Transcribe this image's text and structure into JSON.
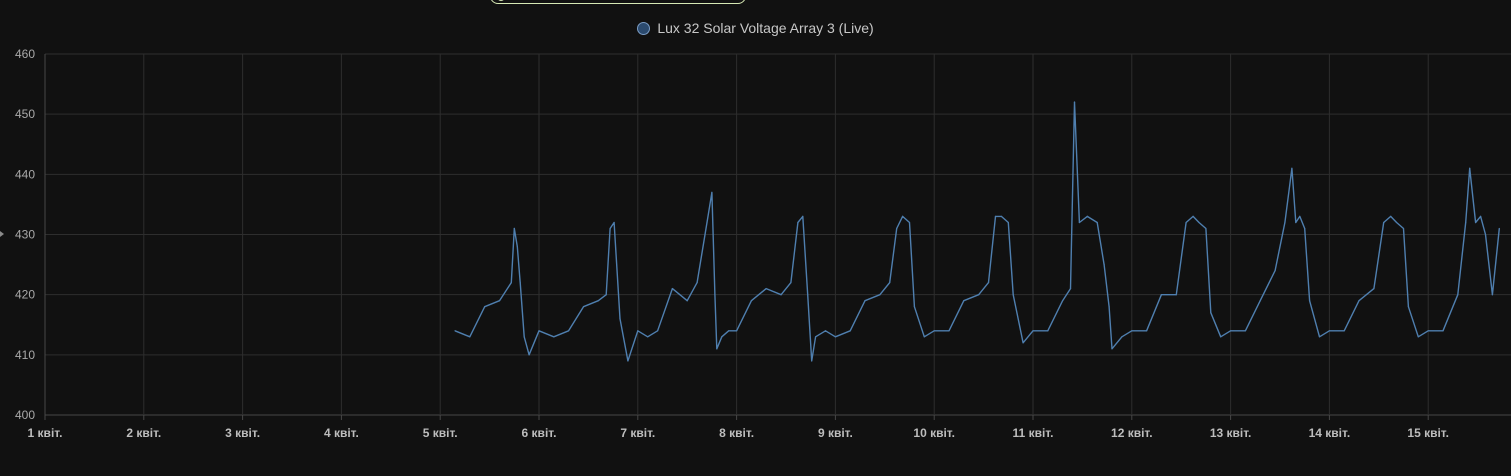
{
  "legend": {
    "label": "Lux 32 Solar Voltage Array 3 (Live)"
  },
  "colors": {
    "series": "#4f7faf",
    "background": "#111111",
    "grid": "#2e2e2e"
  },
  "chart_data": {
    "type": "line",
    "title": "",
    "xlabel": "",
    "ylabel": "",
    "ylim": [
      400,
      460
    ],
    "yticks": [
      "400",
      "410",
      "420",
      "430",
      "440",
      "450",
      "460"
    ],
    "xticks": [
      "1 квіт.",
      "2 квіт.",
      "3 квіт.",
      "4 квіт.",
      "5 квіт.",
      "6 квіт.",
      "7 квіт.",
      "8 квіт.",
      "9 квіт.",
      "10 квіт.",
      "11 квіт.",
      "12 квіт.",
      "13 квіт.",
      "14 квіт.",
      "15 квіт."
    ],
    "x_unit": "days since 1 квіт.",
    "xlim": [
      0,
      14.75
    ],
    "grid": true,
    "legend_position": "top-center",
    "series": [
      {
        "name": "Lux 32 Solar Voltage Array 3 (Live)",
        "x": [
          4.15,
          4.3,
          4.45,
          4.6,
          4.72,
          4.75,
          4.78,
          4.81,
          4.85,
          4.9,
          5.0,
          5.15,
          5.3,
          5.45,
          5.6,
          5.68,
          5.72,
          5.76,
          5.82,
          5.9,
          6.0,
          6.1,
          6.2,
          6.35,
          6.5,
          6.6,
          6.7,
          6.75,
          6.78,
          6.8,
          6.85,
          6.92,
          7.0,
          7.15,
          7.3,
          7.45,
          7.55,
          7.62,
          7.67,
          7.72,
          7.76,
          7.8,
          7.9,
          8.0,
          8.15,
          8.3,
          8.45,
          8.55,
          8.62,
          8.68,
          8.75,
          8.8,
          8.9,
          9.0,
          9.15,
          9.3,
          9.45,
          9.55,
          9.62,
          9.68,
          9.75,
          9.8,
          9.9,
          10.0,
          10.15,
          10.3,
          10.38,
          10.42,
          10.47,
          10.55,
          10.65,
          10.72,
          10.77,
          10.8,
          10.9,
          11.0,
          11.15,
          11.3,
          11.45,
          11.55,
          11.62,
          11.68,
          11.75,
          11.8,
          11.9,
          12.0,
          12.15,
          12.3,
          12.45,
          12.55,
          12.62,
          12.66,
          12.7,
          12.75,
          12.8,
          12.9,
          13.0,
          13.15,
          13.3,
          13.45,
          13.55,
          13.62,
          13.68,
          13.75,
          13.8,
          13.9,
          14.0,
          14.15,
          14.3,
          14.38,
          14.42,
          14.48,
          14.53,
          14.58,
          14.65,
          14.72
        ],
        "values": [
          414,
          413,
          418,
          419,
          422,
          431,
          428,
          422,
          413,
          410,
          414,
          413,
          414,
          418,
          419,
          420,
          431,
          432,
          416,
          409,
          414,
          413,
          414,
          421,
          419,
          422,
          432,
          437,
          420,
          411,
          413,
          414,
          414,
          419,
          421,
          420,
          422,
          432,
          433,
          420,
          409,
          413,
          414,
          413,
          414,
          419,
          420,
          422,
          431,
          433,
          432,
          418,
          413,
          414,
          414,
          419,
          420,
          422,
          433,
          433,
          432,
          420,
          412,
          414,
          414,
          419,
          421,
          452,
          432,
          433,
          432,
          425,
          418,
          411,
          413,
          414,
          414,
          420,
          420,
          432,
          433,
          432,
          431,
          417,
          413,
          414,
          414,
          419,
          424,
          432,
          441,
          432,
          433,
          431,
          419,
          413,
          414,
          414,
          419,
          421,
          432,
          433,
          432,
          431,
          418,
          413,
          414,
          414,
          420,
          432,
          441,
          432,
          433,
          430,
          420,
          431
        ]
      }
    ]
  }
}
